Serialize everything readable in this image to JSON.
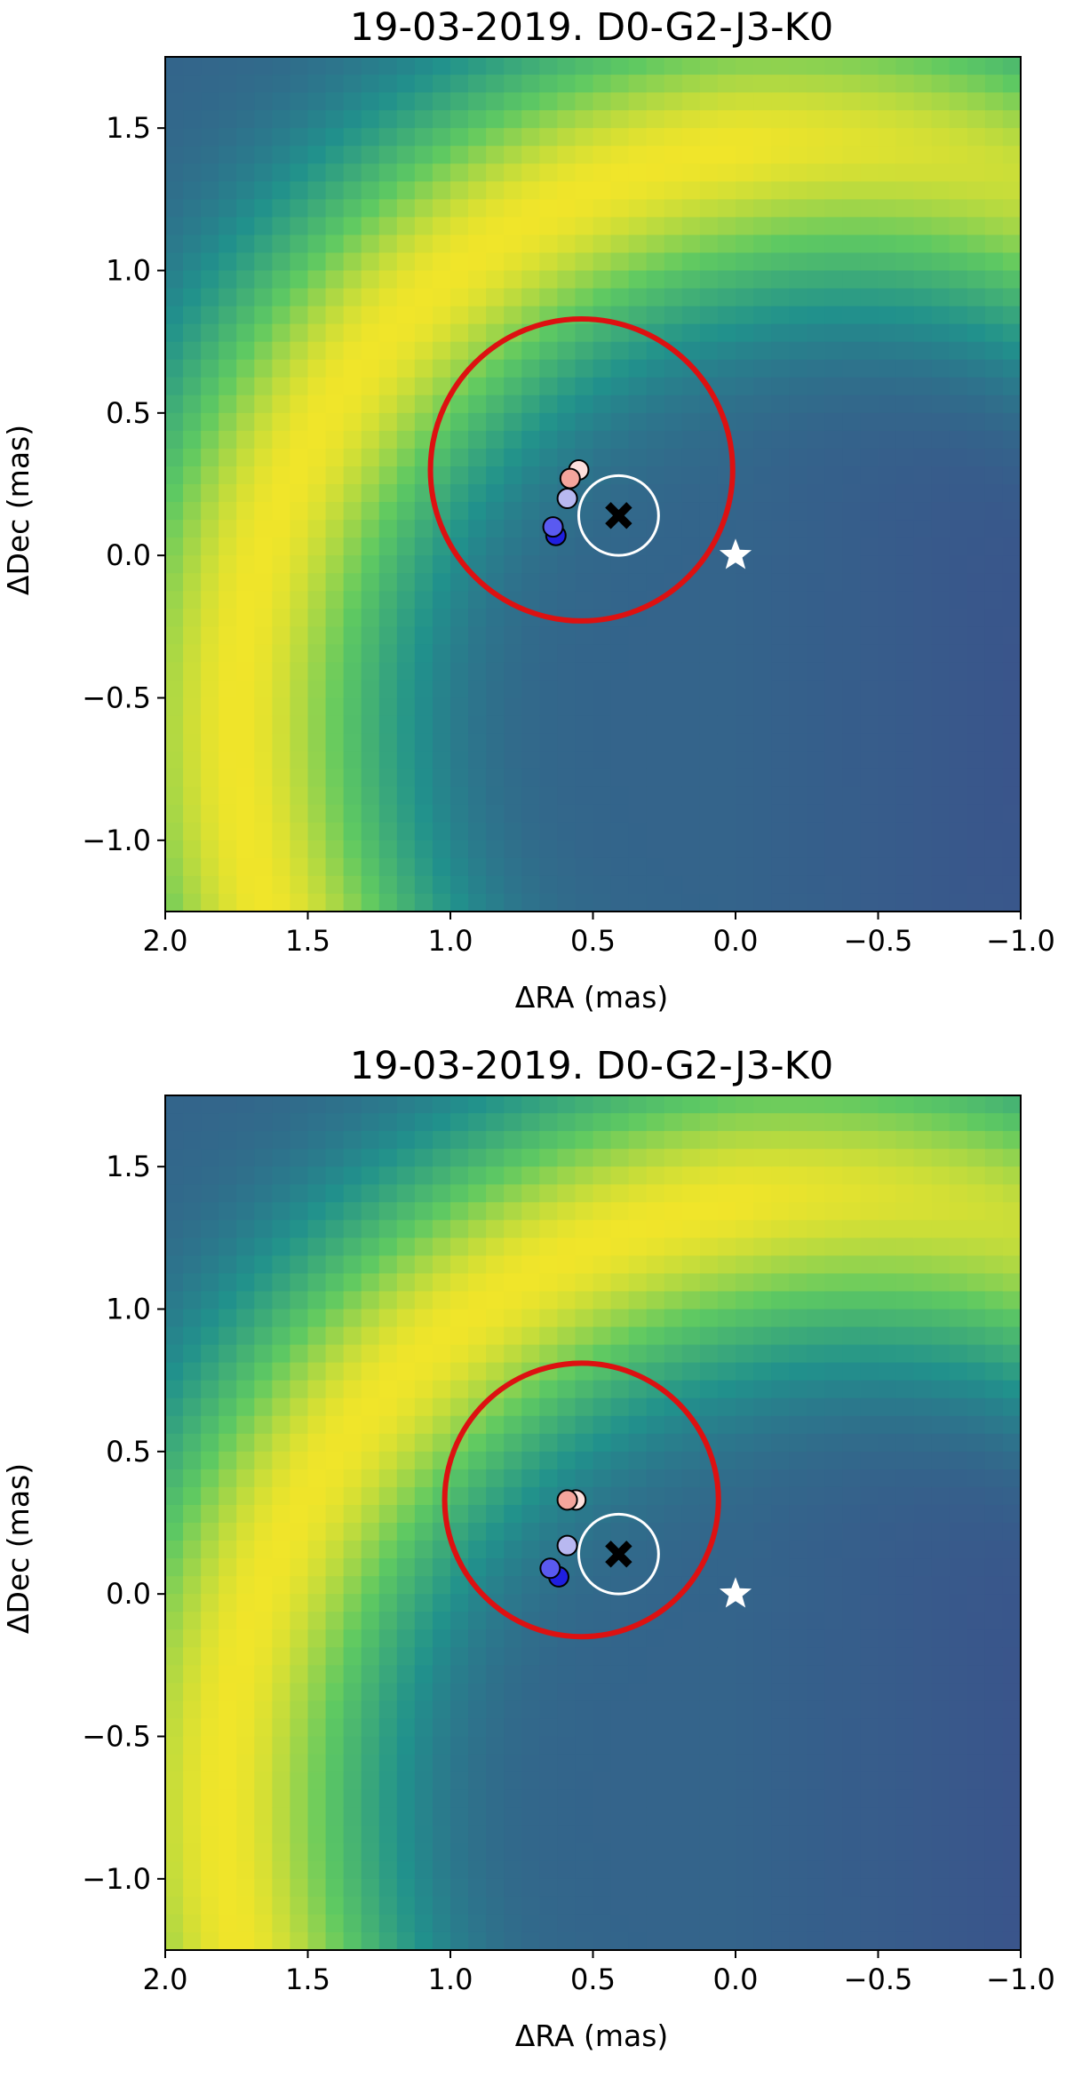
{
  "chart_data": [
    {
      "type": "heatmap",
      "title": "19-03-2019. D0-G2-J3-K0",
      "xlabel": "ΔRA (mas)",
      "ylabel": "ΔDec (mas)",
      "xlim": [
        2.0,
        -1.0
      ],
      "ylim": [
        -1.25,
        1.75
      ],
      "xticks": [
        "2.0",
        "1.5",
        "1.0",
        "0.5",
        "0.0",
        "−0.5",
        "−1.0"
      ],
      "yticks": [
        "−1.0",
        "−0.5",
        "0.0",
        "0.5",
        "1.0",
        "1.5"
      ],
      "colormap": "viridis",
      "heatmap": {
        "arc_center": [
          -0.3,
          -0.6
        ],
        "arc_radius": 2.05
      },
      "points": [
        {
          "x": 0.55,
          "y": 0.3,
          "color": "#fde0dd"
        },
        {
          "x": 0.58,
          "y": 0.27,
          "color": "#f4a59c"
        },
        {
          "x": 0.59,
          "y": 0.2,
          "color": "#b8b8f0"
        },
        {
          "x": 0.63,
          "y": 0.07,
          "color": "#1f1fe0"
        },
        {
          "x": 0.64,
          "y": 0.1,
          "color": "#5a5af0"
        }
      ],
      "best_fit_cross": {
        "x": 0.41,
        "y": 0.14,
        "color": "#000000"
      },
      "error_circle": {
        "x": 0.41,
        "y": 0.14,
        "r": 0.14,
        "color": "#ffffff"
      },
      "red_circle": {
        "x": 0.54,
        "y": 0.3,
        "r": 0.53,
        "color": "#dd1111"
      },
      "star": {
        "x": 0.0,
        "y": 0.0,
        "color": "#ffffff"
      }
    },
    {
      "type": "heatmap",
      "title": "19-03-2019. D0-G2-J3-K0",
      "xlabel": "ΔRA (mas)",
      "ylabel": "ΔDec (mas)",
      "xlim": [
        2.0,
        -1.0
      ],
      "ylim": [
        -1.25,
        1.75
      ],
      "xticks": [
        "2.0",
        "1.5",
        "1.0",
        "0.5",
        "0.0",
        "−0.5",
        "−1.0"
      ],
      "yticks": [
        "−1.0",
        "−0.5",
        "0.0",
        "0.5",
        "1.0",
        "1.5"
      ],
      "colormap": "viridis",
      "heatmap": {
        "arc_center": [
          -0.35,
          -0.75
        ],
        "arc_radius": 2.15
      },
      "points": [
        {
          "x": 0.56,
          "y": 0.33,
          "color": "#fde0dd"
        },
        {
          "x": 0.59,
          "y": 0.33,
          "color": "#f4a59c"
        },
        {
          "x": 0.59,
          "y": 0.17,
          "color": "#b8b8f0"
        },
        {
          "x": 0.62,
          "y": 0.06,
          "color": "#1f1fe0"
        },
        {
          "x": 0.65,
          "y": 0.09,
          "color": "#5a5af0"
        }
      ],
      "best_fit_cross": {
        "x": 0.41,
        "y": 0.14,
        "color": "#000000"
      },
      "error_circle": {
        "x": 0.41,
        "y": 0.14,
        "r": 0.14,
        "color": "#ffffff"
      },
      "red_circle": {
        "x": 0.54,
        "y": 0.33,
        "r": 0.48,
        "color": "#dd1111"
      },
      "star": {
        "x": 0.0,
        "y": 0.0,
        "color": "#ffffff"
      }
    }
  ]
}
